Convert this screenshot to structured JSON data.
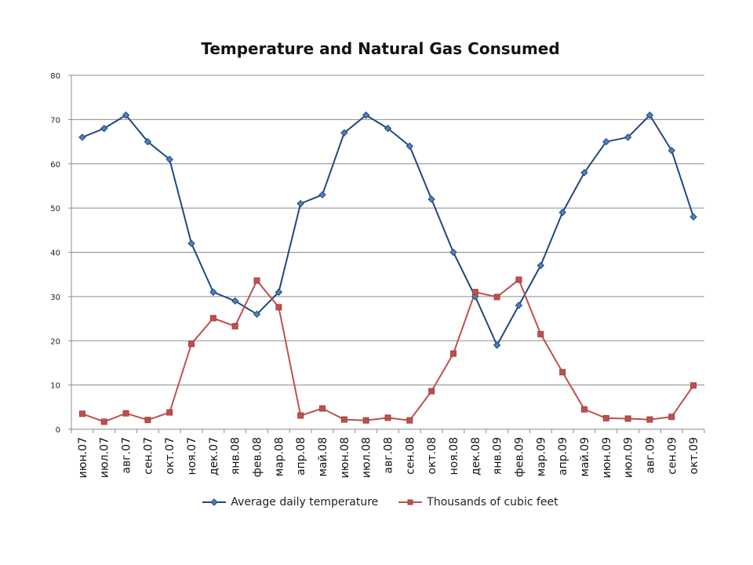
{
  "chart_data": {
    "type": "line",
    "title": "Temperature and Natural Gas Consumed",
    "xlabel": "",
    "ylabel": "",
    "ylim": [
      0,
      80
    ],
    "yticks": [
      0,
      10,
      20,
      30,
      40,
      50,
      60,
      70,
      80
    ],
    "grid": "horizontal",
    "legend_position": "bottom",
    "categories": [
      "июн.07",
      "июл.07",
      "авг.07",
      "сен.07",
      "окт.07",
      "ноя.07",
      "дек.07",
      "янв.08",
      "фев.08",
      "мар.08",
      "апр.08",
      "май.08",
      "июн.08",
      "июл.08",
      "авг.08",
      "сен.08",
      "окт.08",
      "ноя.08",
      "дек.08",
      "янв.09",
      "фев.09",
      "мар.09",
      "апр.09",
      "май.09",
      "июн.09",
      "июл.09",
      "авг.09",
      "сен.09",
      "окт.09"
    ],
    "series": [
      {
        "name": "Average daily temperature",
        "color": "#1F497D",
        "marker": "diamond",
        "values": [
          66,
          68,
          71,
          65,
          61,
          42,
          31,
          29,
          26,
          31,
          51,
          53,
          67,
          71,
          68,
          64,
          52,
          40,
          30,
          19,
          28,
          37,
          49,
          58,
          65,
          66,
          71,
          63,
          48
        ]
      },
      {
        "name": "Thousands of cubic feet",
        "color": "#C0504D",
        "marker": "square",
        "values": [
          3.5,
          1.7,
          3.6,
          2.1,
          3.8,
          19.3,
          25.1,
          23.3,
          33.6,
          27.6,
          3.1,
          4.7,
          2.2,
          2.0,
          2.6,
          2.0,
          8.6,
          17.1,
          31.0,
          29.9,
          33.8,
          21.5,
          12.9,
          4.5,
          2.5,
          2.4,
          2.2,
          2.8,
          9.9
        ]
      }
    ]
  }
}
